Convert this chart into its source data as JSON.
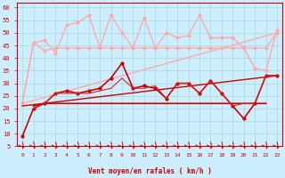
{
  "xlabel": "Vent moyen/en rafales ( km/h )",
  "xlim": [
    -0.5,
    23.5
  ],
  "ylim": [
    5,
    62
  ],
  "yticks": [
    5,
    10,
    15,
    20,
    25,
    30,
    35,
    40,
    45,
    50,
    55,
    60
  ],
  "xticks": [
    0,
    1,
    2,
    3,
    4,
    5,
    6,
    7,
    8,
    9,
    10,
    11,
    12,
    13,
    14,
    15,
    16,
    17,
    18,
    19,
    20,
    21,
    22,
    23
  ],
  "bg_color": "#cceeff",
  "grid_color": "#aadddd",
  "series": [
    {
      "x": [
        0,
        1,
        2,
        3,
        4,
        5,
        6,
        7,
        8,
        9,
        10,
        11,
        12,
        13,
        14,
        15,
        16,
        17,
        18,
        19,
        20,
        21,
        22,
        23
      ],
      "y": [
        22,
        46,
        47,
        42,
        53,
        54,
        57,
        44,
        57,
        50,
        44,
        56,
        44,
        50,
        48,
        49,
        57,
        48,
        48,
        48,
        44,
        36,
        35,
        51
      ],
      "color": "#ffaaaa",
      "lw": 1.0,
      "marker": "o",
      "ms": 2.0
    },
    {
      "x": [
        0,
        1,
        2,
        3,
        4,
        5,
        6,
        7,
        8,
        9,
        10,
        11,
        12,
        13,
        14,
        15,
        16,
        17,
        18,
        19,
        20,
        21,
        22,
        23
      ],
      "y": [
        22,
        46,
        43,
        44,
        44,
        44,
        44,
        44,
        44,
        44,
        44,
        44,
        44,
        44,
        44,
        44,
        44,
        44,
        44,
        44,
        44,
        44,
        44,
        50
      ],
      "color": "#ffaaaa",
      "lw": 1.0,
      "marker": "o",
      "ms": 2.0
    },
    {
      "x": [
        0,
        23
      ],
      "y": [
        22,
        50
      ],
      "color": "#ffaaaa",
      "lw": 1.0,
      "marker": null,
      "ms": 0
    },
    {
      "x": [
        0,
        1,
        2,
        3,
        4,
        5,
        6,
        7,
        8,
        9,
        10,
        11,
        12,
        13,
        14,
        15,
        16,
        17,
        18,
        19,
        20,
        21,
        22,
        23
      ],
      "y": [
        9,
        20,
        22,
        26,
        27,
        26,
        27,
        28,
        32,
        38,
        28,
        29,
        28,
        24,
        30,
        30,
        26,
        31,
        26,
        21,
        16,
        22,
        33,
        33
      ],
      "color": "#cc0000",
      "lw": 1.2,
      "marker": "o",
      "ms": 2.0
    },
    {
      "x": [
        1,
        2,
        3,
        4,
        5,
        6,
        7,
        8,
        9,
        10,
        11,
        12,
        13,
        14,
        15,
        16,
        17,
        18,
        19,
        20,
        21,
        22
      ],
      "y": [
        21,
        22,
        22,
        22,
        22,
        22,
        22,
        22,
        22,
        22,
        22,
        22,
        22,
        22,
        22,
        22,
        22,
        22,
        22,
        22,
        22,
        22
      ],
      "color": "#cc0000",
      "lw": 1.2,
      "marker": null,
      "ms": 0
    },
    {
      "x": [
        0,
        23
      ],
      "y": [
        21,
        33
      ],
      "color": "#cc0000",
      "lw": 1.0,
      "marker": null,
      "ms": 0
    },
    {
      "x": [
        1,
        2,
        3,
        4,
        5,
        6,
        7,
        8,
        9,
        10,
        11,
        12,
        13,
        14,
        15,
        16,
        17,
        18,
        19,
        20,
        21,
        22,
        23
      ],
      "y": [
        20,
        22,
        26,
        26,
        26,
        26,
        27,
        28,
        32,
        28,
        28,
        29,
        24,
        30,
        30,
        26,
        31,
        26,
        21,
        22,
        22,
        33,
        33
      ],
      "color": "#dd2222",
      "lw": 0.8,
      "marker": null,
      "ms": 0
    }
  ]
}
